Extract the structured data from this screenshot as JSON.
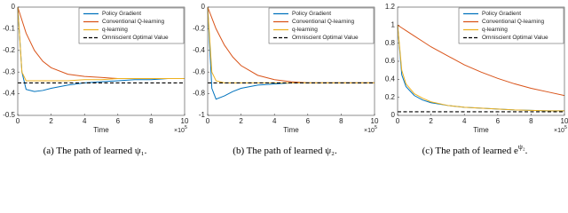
{
  "chart_data": [
    {
      "type": "line",
      "caption": [
        {
          "text": "(a) The path of learned ψ₁."
        }
      ],
      "xlabel": "Time",
      "x_multiplier": "×10",
      "x_multiplier_exp": "5",
      "x": [
        0,
        0.25,
        0.5,
        1,
        1.5,
        2,
        3,
        4,
        5,
        6,
        7,
        8,
        9,
        10
      ],
      "xlim": [
        0,
        10
      ],
      "xticks": [
        0,
        2,
        4,
        6,
        8,
        10
      ],
      "ylim": [
        -0.5,
        0
      ],
      "yticks": [
        -0.5,
        -0.4,
        -0.3,
        -0.2,
        -0.1,
        0
      ],
      "legend": "upper right",
      "series": [
        {
          "name": "Policy Gradient",
          "color": "#0072BD",
          "values": [
            0,
            -0.3,
            -0.38,
            -0.39,
            -0.385,
            -0.375,
            -0.36,
            -0.35,
            -0.345,
            -0.34,
            -0.335,
            -0.335,
            -0.33,
            -0.33
          ]
        },
        {
          "name": "Conventional Q-learning",
          "color": "#D95319",
          "values": [
            0,
            -0.06,
            -0.12,
            -0.2,
            -0.25,
            -0.28,
            -0.31,
            -0.32,
            -0.325,
            -0.33,
            -0.33,
            -0.33,
            -0.33,
            -0.33
          ]
        },
        {
          "name": "q-learning",
          "color": "#EDB120",
          "values": [
            0,
            -0.3,
            -0.34,
            -0.34,
            -0.34,
            -0.34,
            -0.34,
            -0.335,
            -0.335,
            -0.33,
            -0.33,
            -0.33,
            -0.33,
            -0.33
          ]
        },
        {
          "name": "Omniscient Optimal Value",
          "color": "#000000",
          "dash": true,
          "values": [
            -0.35,
            -0.35,
            -0.35,
            -0.35,
            -0.35,
            -0.35,
            -0.35,
            -0.35,
            -0.35,
            -0.35,
            -0.35,
            -0.35,
            -0.35,
            -0.35
          ]
        }
      ]
    },
    {
      "type": "line",
      "caption": [
        {
          "text": "(b) The path of learned ψ₂."
        }
      ],
      "xlabel": "Time",
      "x_multiplier": "×10",
      "x_multiplier_exp": "5",
      "x": [
        0,
        0.25,
        0.5,
        1,
        1.5,
        2,
        3,
        4,
        5,
        6,
        7,
        8,
        9,
        10
      ],
      "xlim": [
        0,
        10
      ],
      "xticks": [
        0,
        2,
        4,
        6,
        8,
        10
      ],
      "ylim": [
        -1,
        0
      ],
      "yticks": [
        -1,
        -0.8,
        -0.6,
        -0.4,
        -0.2,
        0
      ],
      "legend": "upper right",
      "series": [
        {
          "name": "Policy Gradient",
          "color": "#0072BD",
          "values": [
            0,
            -0.75,
            -0.85,
            -0.82,
            -0.78,
            -0.75,
            -0.72,
            -0.71,
            -0.7,
            -0.7,
            -0.7,
            -0.7,
            -0.7,
            -0.7
          ]
        },
        {
          "name": "Conventional Q-learning",
          "color": "#D95319",
          "values": [
            0,
            -0.1,
            -0.2,
            -0.35,
            -0.46,
            -0.54,
            -0.63,
            -0.67,
            -0.69,
            -0.7,
            -0.7,
            -0.7,
            -0.7,
            -0.7
          ]
        },
        {
          "name": "q-learning",
          "color": "#EDB120",
          "values": [
            0,
            -0.6,
            -0.68,
            -0.7,
            -0.7,
            -0.7,
            -0.7,
            -0.7,
            -0.7,
            -0.7,
            -0.7,
            -0.7,
            -0.7,
            -0.7
          ]
        },
        {
          "name": "Omniscient Optimal Value",
          "color": "#000000",
          "dash": true,
          "values": [
            -0.7,
            -0.7,
            -0.7,
            -0.7,
            -0.7,
            -0.7,
            -0.7,
            -0.7,
            -0.7,
            -0.7,
            -0.7,
            -0.7,
            -0.7,
            -0.7
          ]
        }
      ]
    },
    {
      "type": "line",
      "caption": [
        {
          "text": "(c) The path of learned e"
        },
        {
          "text": "ψ₂",
          "sup": true
        },
        {
          "text": "."
        }
      ],
      "xlabel": "Time",
      "x_multiplier": "×10",
      "x_multiplier_exp": "5",
      "x": [
        0,
        0.25,
        0.5,
        1,
        1.5,
        2,
        3,
        4,
        5,
        6,
        7,
        8,
        9,
        10
      ],
      "xlim": [
        0,
        10
      ],
      "xticks": [
        0,
        2,
        4,
        6,
        8,
        10
      ],
      "ylim": [
        0,
        1.2
      ],
      "yticks": [
        0,
        0.2,
        0.4,
        0.6,
        0.8,
        1,
        1.2
      ],
      "legend": "upper right",
      "series": [
        {
          "name": "Policy Gradient",
          "color": "#0072BD",
          "values": [
            1,
            0.45,
            0.32,
            0.22,
            0.17,
            0.14,
            0.11,
            0.09,
            0.08,
            0.07,
            0.06,
            0.055,
            0.05,
            0.05
          ]
        },
        {
          "name": "Conventional Q-learning",
          "color": "#D95319",
          "values": [
            1,
            0.97,
            0.94,
            0.88,
            0.82,
            0.76,
            0.66,
            0.56,
            0.48,
            0.41,
            0.35,
            0.3,
            0.26,
            0.22
          ]
        },
        {
          "name": "q-learning",
          "color": "#EDB120",
          "values": [
            1,
            0.5,
            0.35,
            0.24,
            0.19,
            0.15,
            0.11,
            0.09,
            0.08,
            0.07,
            0.06,
            0.055,
            0.05,
            0.05
          ]
        },
        {
          "name": "Omniscient Optimal Value",
          "color": "#000000",
          "dash": true,
          "values": [
            0.04,
            0.04,
            0.04,
            0.04,
            0.04,
            0.04,
            0.04,
            0.04,
            0.04,
            0.04,
            0.04,
            0.04,
            0.04,
            0.04
          ]
        }
      ]
    }
  ]
}
